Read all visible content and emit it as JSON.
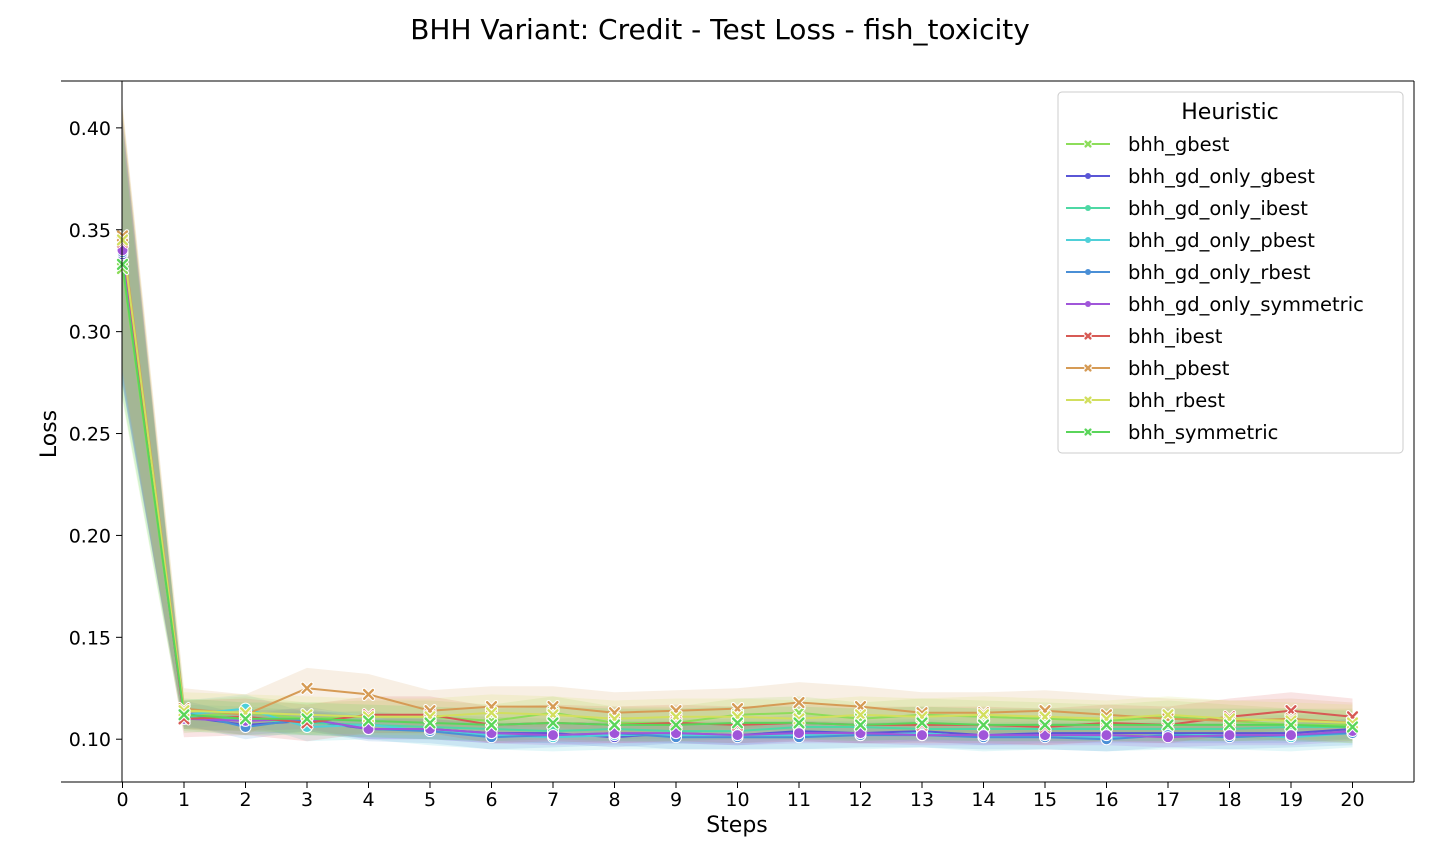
{
  "chart_data": {
    "type": "line",
    "title": "BHH Variant: Credit - Test Loss - fish_toxicity",
    "xlabel": "Steps",
    "ylabel": "Loss",
    "xlim": [
      -1,
      21
    ],
    "ylim": [
      0.079,
      0.423
    ],
    "x": [
      0,
      1,
      2,
      3,
      4,
      5,
      6,
      7,
      8,
      9,
      10,
      11,
      12,
      13,
      14,
      15,
      16,
      17,
      18,
      19,
      20
    ],
    "xticks": [
      "0",
      "1",
      "2",
      "3",
      "4",
      "5",
      "6",
      "7",
      "8",
      "9",
      "10",
      "11",
      "12",
      "13",
      "14",
      "15",
      "16",
      "17",
      "18",
      "19",
      "20"
    ],
    "yticks": [
      "0.10",
      "0.15",
      "0.20",
      "0.25",
      "0.30",
      "0.35",
      "0.40"
    ],
    "ytick_values": [
      0.1,
      0.15,
      0.2,
      0.25,
      0.3,
      0.35,
      0.4
    ],
    "legend": {
      "title": "Heuristic",
      "position": "top-right"
    },
    "series": [
      {
        "name": "bhh_gbest",
        "color": "#8ddd5a",
        "marker": "x",
        "ci": 0.008,
        "values": [
          0.331,
          0.111,
          0.113,
          0.11,
          0.111,
          0.111,
          0.109,
          0.113,
          0.108,
          0.108,
          0.112,
          0.113,
          0.11,
          0.112,
          0.111,
          0.11,
          0.109,
          0.111,
          0.109,
          0.107,
          0.107
        ]
      },
      {
        "name": "bhh_gd_only_gbest",
        "color": "#5a56d6",
        "marker": "o",
        "ci": 0.005,
        "values": [
          0.338,
          0.111,
          0.107,
          0.109,
          0.105,
          0.105,
          0.103,
          0.103,
          0.101,
          0.103,
          0.102,
          0.104,
          0.103,
          0.104,
          0.102,
          0.103,
          0.103,
          0.103,
          0.103,
          0.103,
          0.105
        ]
      },
      {
        "name": "bhh_gd_only_ibest",
        "color": "#4ed8a4",
        "marker": "o",
        "ci": 0.006,
        "values": [
          0.342,
          0.111,
          0.11,
          0.108,
          0.107,
          0.106,
          0.105,
          0.104,
          0.105,
          0.104,
          0.104,
          0.106,
          0.106,
          0.105,
          0.105,
          0.105,
          0.105,
          0.105,
          0.105,
          0.106,
          0.106
        ]
      },
      {
        "name": "bhh_gd_only_pbest",
        "color": "#4fd0d8",
        "marker": "o",
        "ci": 0.007,
        "values": [
          0.339,
          0.112,
          0.115,
          0.106,
          0.107,
          0.104,
          0.102,
          0.101,
          0.102,
          0.102,
          0.102,
          0.102,
          0.102,
          0.103,
          0.101,
          0.102,
          0.101,
          0.102,
          0.102,
          0.101,
          0.103
        ]
      },
      {
        "name": "bhh_gd_only_rbest",
        "color": "#4a8fd6",
        "marker": "o",
        "ci": 0.006,
        "values": [
          0.339,
          0.113,
          0.106,
          0.11,
          0.105,
          0.104,
          0.101,
          0.102,
          0.103,
          0.101,
          0.101,
          0.101,
          0.102,
          0.102,
          0.101,
          0.101,
          0.1,
          0.102,
          0.101,
          0.102,
          0.103
        ]
      },
      {
        "name": "bhh_gd_only_symmetric",
        "color": "#a056d9",
        "marker": "o",
        "ci": 0.005,
        "values": [
          0.34,
          0.11,
          0.109,
          0.11,
          0.105,
          0.105,
          0.103,
          0.102,
          0.103,
          0.103,
          0.102,
          0.103,
          0.103,
          0.102,
          0.102,
          0.102,
          0.102,
          0.101,
          0.102,
          0.102,
          0.104
        ]
      },
      {
        "name": "bhh_ibest",
        "color": "#d75a55",
        "marker": "x",
        "ci": 0.009,
        "values": [
          0.344,
          0.11,
          0.111,
          0.108,
          0.112,
          0.112,
          0.107,
          0.108,
          0.107,
          0.108,
          0.107,
          0.108,
          0.107,
          0.107,
          0.107,
          0.106,
          0.108,
          0.107,
          0.111,
          0.114,
          0.111
        ]
      },
      {
        "name": "bhh_pbest",
        "color": "#d69b55",
        "marker": "x",
        "ci": 0.01,
        "values": [
          0.347,
          0.115,
          0.112,
          0.125,
          0.122,
          0.114,
          0.116,
          0.116,
          0.113,
          0.114,
          0.115,
          0.118,
          0.116,
          0.113,
          0.113,
          0.114,
          0.112,
          0.11,
          0.109,
          0.11,
          0.108
        ]
      },
      {
        "name": "bhh_rbest",
        "color": "#d2df5e",
        "marker": "x",
        "ci": 0.009,
        "values": [
          0.345,
          0.114,
          0.113,
          0.112,
          0.111,
          0.111,
          0.113,
          0.112,
          0.11,
          0.111,
          0.111,
          0.11,
          0.112,
          0.111,
          0.112,
          0.111,
          0.11,
          0.112,
          0.11,
          0.109,
          0.108
        ]
      },
      {
        "name": "bhh_symmetric",
        "color": "#5ad55a",
        "marker": "x",
        "ci": 0.008,
        "values": [
          0.333,
          0.112,
          0.11,
          0.11,
          0.109,
          0.108,
          0.107,
          0.108,
          0.107,
          0.107,
          0.108,
          0.108,
          0.107,
          0.108,
          0.107,
          0.107,
          0.107,
          0.107,
          0.107,
          0.107,
          0.106
        ]
      }
    ]
  }
}
